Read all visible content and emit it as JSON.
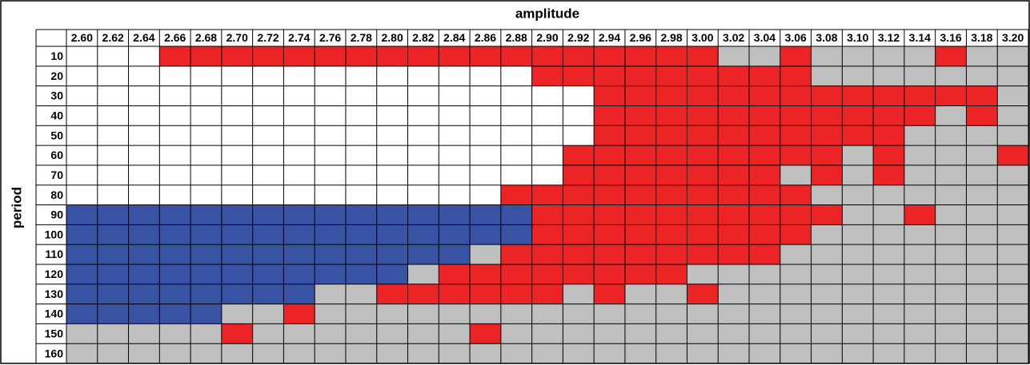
{
  "title": "amplitude",
  "row_title": "period",
  "columns": [
    "2.60",
    "2.62",
    "2.64",
    "2.66",
    "2.68",
    "2.70",
    "2.72",
    "2.74",
    "2.76",
    "2.78",
    "2.80",
    "2.82",
    "2.84",
    "2.86",
    "2.88",
    "2.90",
    "2.92",
    "2.94",
    "2.96",
    "2.98",
    "3.00",
    "3.02",
    "3.04",
    "3.06",
    "3.08",
    "3.10",
    "3.12",
    "3.14",
    "3.16",
    "3.18",
    "3.20"
  ],
  "rows": [
    10,
    20,
    30,
    40,
    50,
    60,
    70,
    80,
    90,
    100,
    110,
    120,
    130,
    140,
    150,
    160
  ],
  "palette": {
    "w": "#ffffff",
    "r": "#ec2426",
    "b": "#3953a4",
    "g": "#bfbfbf"
  },
  "cells": [
    "wwwrrrrrrrrrrrrrrrrrrggrggggrgg",
    "wwwwwwwwwwwwwwwrrrrrrrrrggggggg",
    "wwwwwwwwwwwwwwwwwrrrrrrrrrrrrrg",
    "wwwwwwwwwwwwwwwwwrrrrrrrrrrrgrg",
    "wwwwwwwwwwwwwwwwwrrrrrrrrrrgggg",
    "wwwwwwwwwwwwwwwwrrrrrrrrrgrgggr",
    "wwwwwwwwwwwwwwwwrrrrrrrgrgrgggg",
    "wwwwwwwwwwwwwwrrrrrrrrrrggggggg",
    "bbbbbbbbbbbbbbbrrrrrrrrrrggrggg",
    "bbbbbbbbbbbbbbbrrrrrrrrrggggggg",
    "bbbbbbbbbbbbbgrrrrrrrrrgggggggg",
    "bbbbbbbbbbbgrrrrrrrrggggggggggg",
    "bbbbbbbbggrrrrrrgrggrgggggggggg",
    "bbbbbggrggggggggggggggggggggggg",
    "gggggrgggggggrggggggggggggggggg",
    "ggggggggggggggggggggggggggggggg"
  ]
}
